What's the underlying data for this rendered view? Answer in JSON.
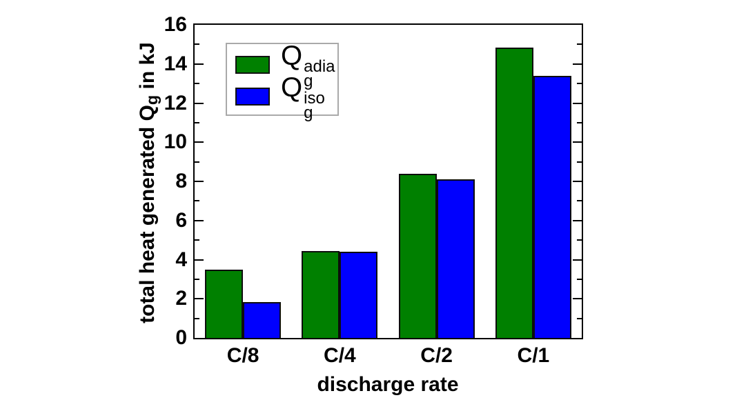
{
  "chart_data": {
    "type": "bar",
    "categories": [
      "C/8",
      "C/4",
      "C/2",
      "C/1"
    ],
    "series": [
      {
        "name": "Qg_adia",
        "legend": {
          "base": "Q",
          "sub": "g",
          "sup": "adia"
        },
        "color": "#008000",
        "values": [
          3.5,
          4.45,
          8.4,
          14.85
        ]
      },
      {
        "name": "Qg_iso",
        "legend": {
          "base": "Q",
          "sub": "g",
          "sup": "iso"
        },
        "color": "#0000fe",
        "values": [
          1.85,
          4.4,
          8.1,
          13.4
        ]
      }
    ],
    "xlabel": "discharge rate",
    "ylabel": {
      "prefix": "total heat generated Q",
      "sub": "g",
      "suffix": " in kJ"
    },
    "ylim": [
      0,
      16
    ],
    "ytick_major": 2,
    "ytick_minor": 1,
    "ytick_labels": [
      "0",
      "2",
      "4",
      "6",
      "8",
      "10",
      "12",
      "14",
      "16"
    ],
    "legend_position": "upper-left-inside",
    "grid": false,
    "bar_edge_color": "#0d0d0d",
    "axis_color": "#000000",
    "legend_border_color": "#a9a9a9"
  }
}
